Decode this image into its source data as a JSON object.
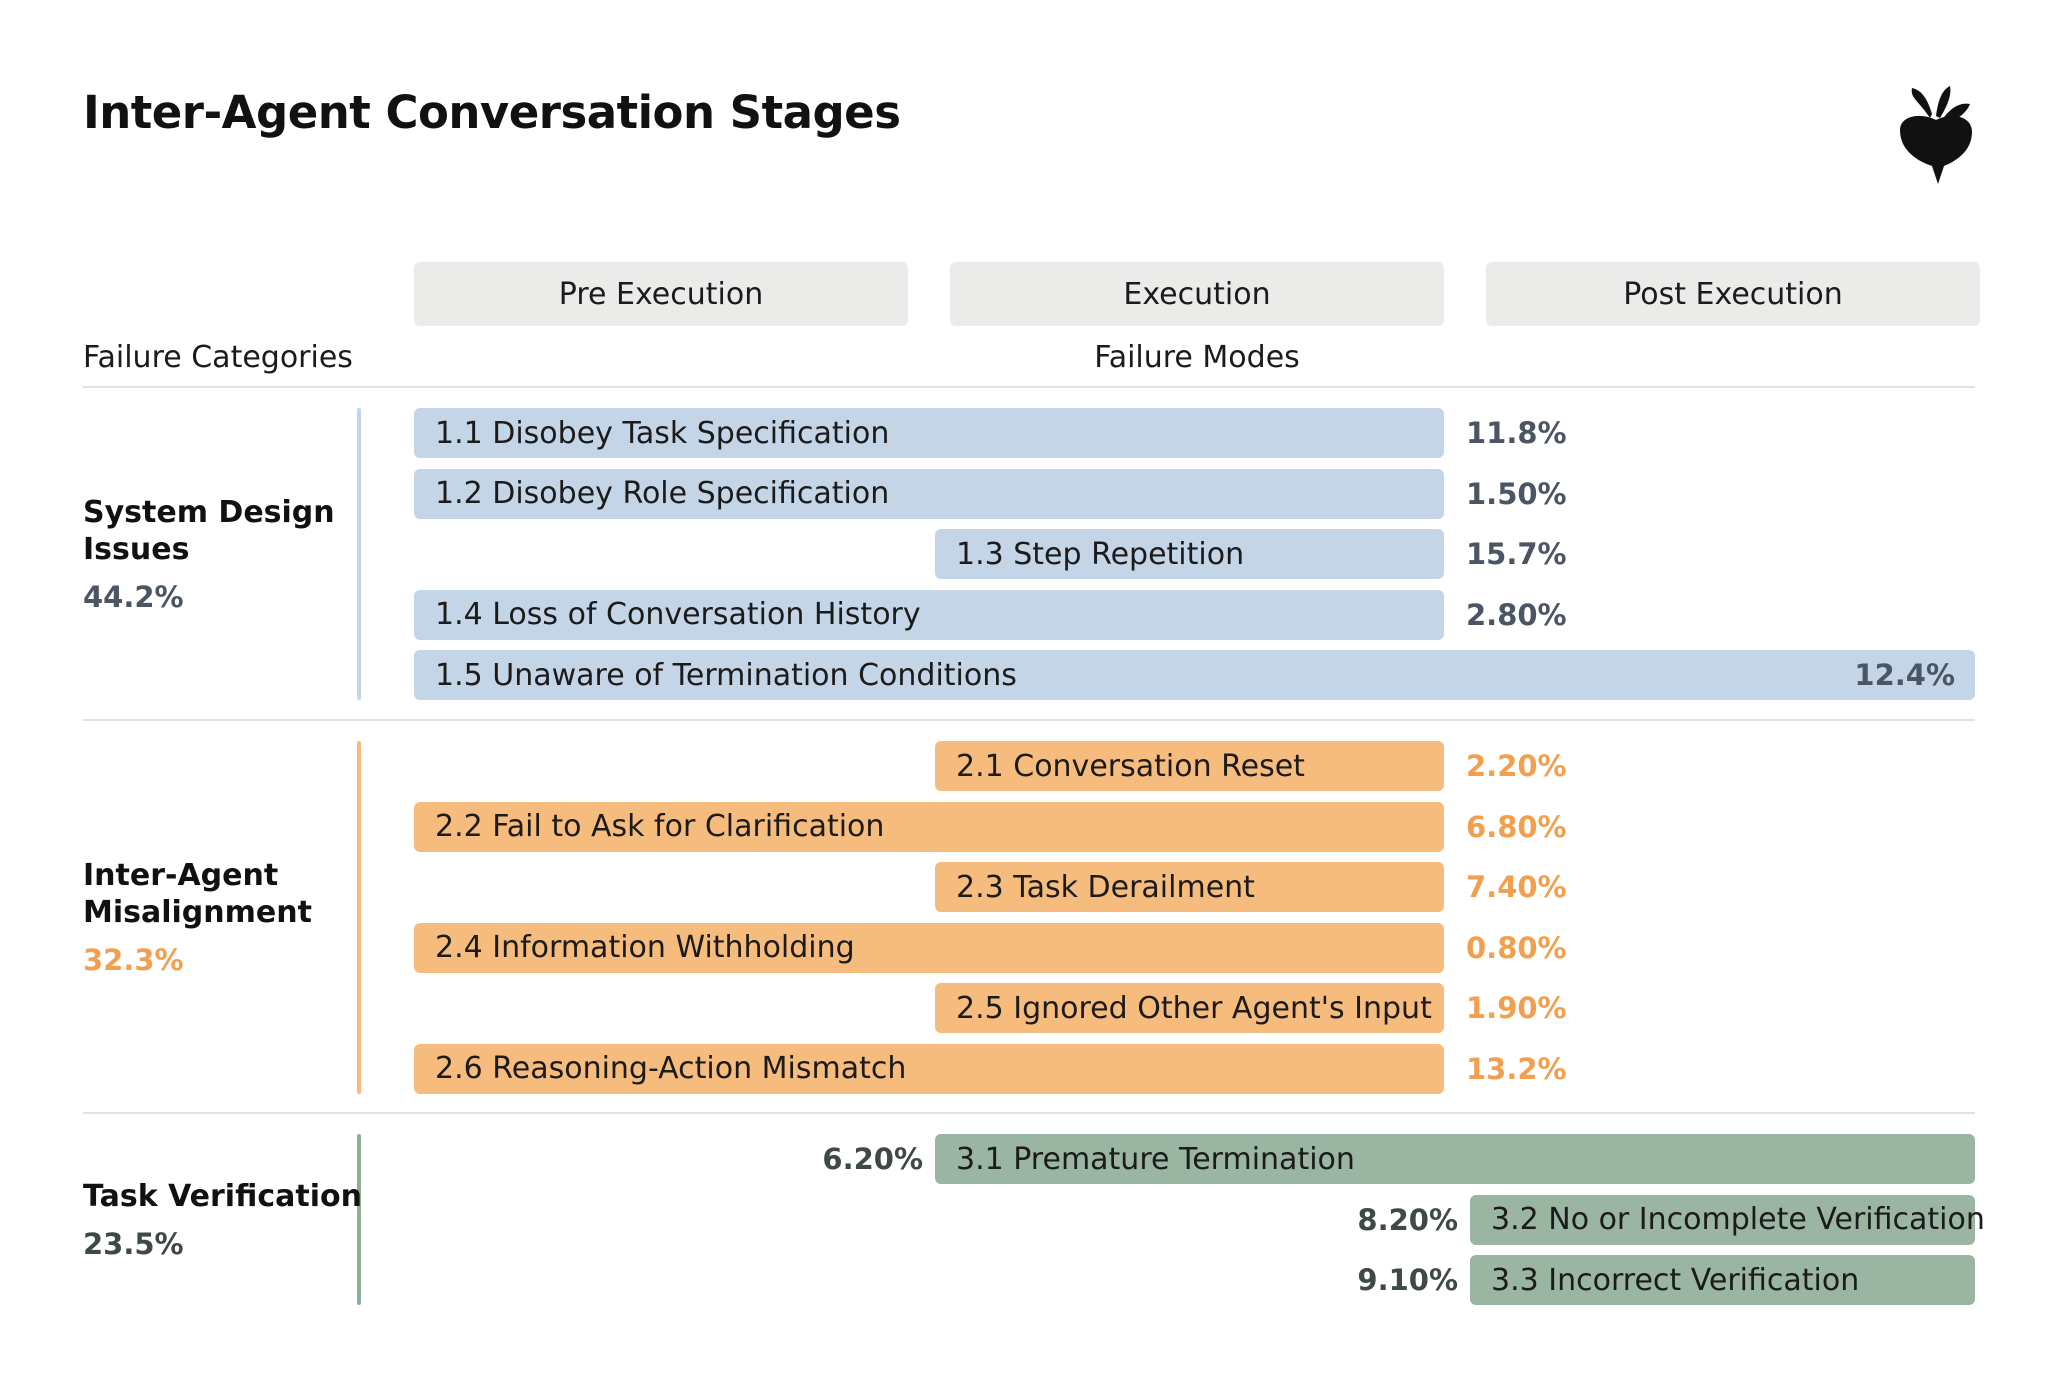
{
  "title": "Inter-Agent Conversation Stages",
  "logo_icon": "beet-logo-icon",
  "stages": [
    "Pre Execution",
    "Execution",
    "Post Execution"
  ],
  "headers": {
    "categories": "Failure Categories",
    "modes": "Failure Modes"
  },
  "colors": {
    "system_design": "#c5d5e8",
    "system_design_text": "#4b5563",
    "system_design_line": "#c5d5e8",
    "inter_agent": "#f6bc7e",
    "inter_agent_text": "#f2a04f",
    "task_verification": "#9bb5a3",
    "task_verification_text": "#3f4a44",
    "task_verification_line": "#8fae98"
  },
  "categories": [
    {
      "name_lines": [
        "System Design",
        "Issues"
      ],
      "percent": "44.2%",
      "modes": [
        {
          "label": "1.1 Disobey Task Specification",
          "percent": "11.8%",
          "stage_start": 1,
          "stage_end": 2
        },
        {
          "label": "1.2 Disobey Role Specification",
          "percent": "1.50%",
          "stage_start": 1,
          "stage_end": 2
        },
        {
          "label": "1.3 Step Repetition",
          "percent": "15.7%",
          "stage_start": 2,
          "stage_end": 2
        },
        {
          "label": "1.4 Loss of Conversation History",
          "percent": "2.80%",
          "stage_start": 1,
          "stage_end": 2
        },
        {
          "label": "1.5 Unaware of Termination Conditions",
          "percent": "12.4%",
          "stage_start": 1,
          "stage_end": 3
        }
      ]
    },
    {
      "name_lines": [
        "Inter-Agent",
        "Misalignment"
      ],
      "percent": "32.3%",
      "modes": [
        {
          "label": "2.1 Conversation Reset",
          "percent": "2.20%",
          "stage_start": 2,
          "stage_end": 2
        },
        {
          "label": "2.2 Fail to Ask for Clarification",
          "percent": "6.80%",
          "stage_start": 1,
          "stage_end": 2
        },
        {
          "label": "2.3 Task Derailment",
          "percent": "7.40%",
          "stage_start": 2,
          "stage_end": 2
        },
        {
          "label": "2.4 Information Withholding",
          "percent": "0.80%",
          "stage_start": 1,
          "stage_end": 2
        },
        {
          "label": "2.5 Ignored Other Agent's Input",
          "percent": "1.90%",
          "stage_start": 2,
          "stage_end": 2
        },
        {
          "label": "2.6 Reasoning-Action Mismatch",
          "percent": "13.2%",
          "stage_start": 1,
          "stage_end": 2
        }
      ]
    },
    {
      "name_lines": [
        "Task Verification"
      ],
      "percent": "23.5%",
      "modes": [
        {
          "label": "3.1 Premature Termination",
          "percent": "6.20%",
          "stage_start": 2,
          "stage_end": 3
        },
        {
          "label": "3.2 No or Incomplete Verification",
          "percent": "8.20%",
          "stage_start": 3,
          "stage_end": 3
        },
        {
          "label": "3.3 Incorrect Verification",
          "percent": "9.10%",
          "stage_start": 3,
          "stage_end": 3
        }
      ]
    }
  ]
}
